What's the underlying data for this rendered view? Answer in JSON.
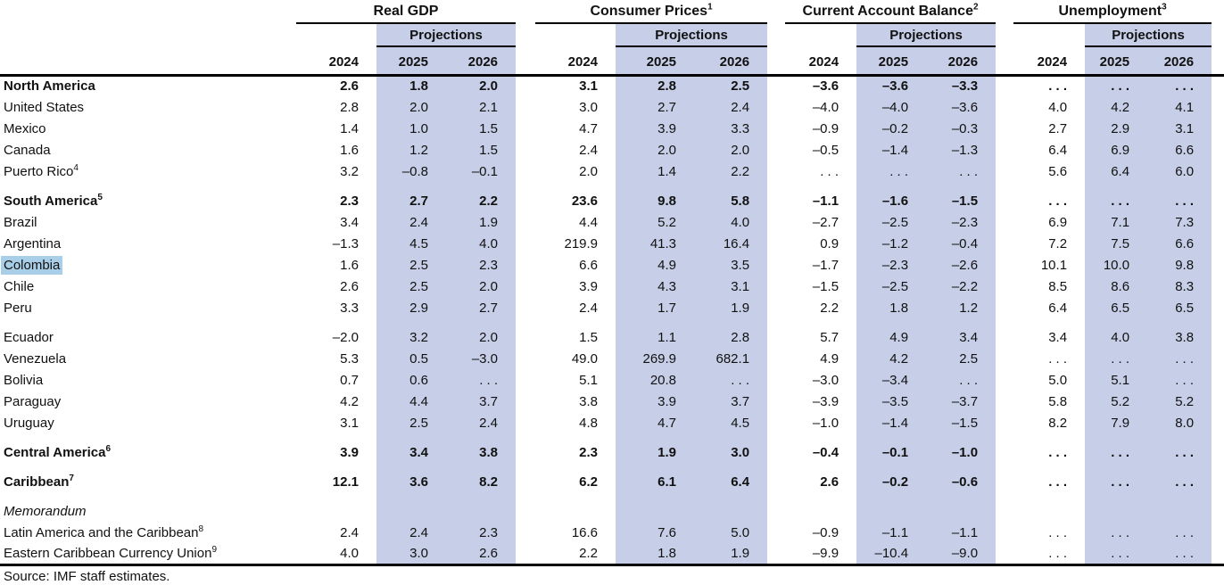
{
  "header": {
    "projections_label": "Projections",
    "years": [
      "2024",
      "2025",
      "2026"
    ],
    "groups": [
      {
        "title": "Real GDP",
        "sup": ""
      },
      {
        "title": "Consumer Prices",
        "sup": "1"
      },
      {
        "title": "Current Account Balance",
        "sup": "2"
      },
      {
        "title": "Unemployment",
        "sup": "3"
      }
    ]
  },
  "table": {
    "rows": [
      {
        "label": "North America",
        "bold": true,
        "values": [
          "2.6",
          "1.8",
          "2.0",
          "3.1",
          "2.8",
          "2.5",
          "–3.6",
          "–3.6",
          "–3.3",
          ". . .",
          ". . .",
          ". . ."
        ]
      },
      {
        "label": "United States",
        "values": [
          "2.8",
          "2.0",
          "2.1",
          "3.0",
          "2.7",
          "2.4",
          "–4.0",
          "–4.0",
          "–3.6",
          "4.0",
          "4.2",
          "4.1"
        ]
      },
      {
        "label": "Mexico",
        "values": [
          "1.4",
          "1.0",
          "1.5",
          "4.7",
          "3.9",
          "3.3",
          "–0.9",
          "–0.2",
          "–0.3",
          "2.7",
          "2.9",
          "3.1"
        ]
      },
      {
        "label": "Canada",
        "values": [
          "1.6",
          "1.2",
          "1.5",
          "2.4",
          "2.0",
          "2.0",
          "–0.5",
          "–1.4",
          "–1.3",
          "6.4",
          "6.9",
          "6.6"
        ]
      },
      {
        "label": "Puerto Rico",
        "sup": "4",
        "values": [
          "3.2",
          "–0.8",
          "–0.1",
          "2.0",
          "1.4",
          "2.2",
          ". . .",
          ". . .",
          ". . .",
          "5.6",
          "6.4",
          "6.0"
        ]
      },
      {
        "label": "South America",
        "sup": "5",
        "bold": true,
        "spacer_before": true,
        "values": [
          "2.3",
          "2.7",
          "2.2",
          "23.6",
          "9.8",
          "5.8",
          "–1.1",
          "–1.6",
          "–1.5",
          ". . .",
          ". . .",
          ". . ."
        ]
      },
      {
        "label": "Brazil",
        "values": [
          "3.4",
          "2.4",
          "1.9",
          "4.4",
          "5.2",
          "4.0",
          "–2.7",
          "–2.5",
          "–2.3",
          "6.9",
          "7.1",
          "7.3"
        ]
      },
      {
        "label": "Argentina",
        "values": [
          "–1.3",
          "4.5",
          "4.0",
          "219.9",
          "41.3",
          "16.4",
          "0.9",
          "–1.2",
          "–0.4",
          "7.2",
          "7.5",
          "6.6"
        ]
      },
      {
        "label": "Colombia",
        "highlight": true,
        "values": [
          "1.6",
          "2.5",
          "2.3",
          "6.6",
          "4.9",
          "3.5",
          "–1.7",
          "–2.3",
          "–2.6",
          "10.1",
          "10.0",
          "9.8"
        ]
      },
      {
        "label": "Chile",
        "values": [
          "2.6",
          "2.5",
          "2.0",
          "3.9",
          "4.3",
          "3.1",
          "–1.5",
          "–2.5",
          "–2.2",
          "8.5",
          "8.6",
          "8.3"
        ]
      },
      {
        "label": "Peru",
        "values": [
          "3.3",
          "2.9",
          "2.7",
          "2.4",
          "1.7",
          "1.9",
          "2.2",
          "1.8",
          "1.2",
          "6.4",
          "6.5",
          "6.5"
        ]
      },
      {
        "label": "Ecuador",
        "spacer_before": true,
        "values": [
          "–2.0",
          "3.2",
          "2.0",
          "1.5",
          "1.1",
          "2.8",
          "5.7",
          "4.9",
          "3.4",
          "3.4",
          "4.0",
          "3.8"
        ]
      },
      {
        "label": "Venezuela",
        "values": [
          "5.3",
          "0.5",
          "–3.0",
          "49.0",
          "269.9",
          "682.1",
          "4.9",
          "4.2",
          "2.5",
          ". . .",
          ". . .",
          ". . ."
        ]
      },
      {
        "label": "Bolivia",
        "values": [
          "0.7",
          "0.6",
          ". . .",
          "5.1",
          "20.8",
          ". . .",
          "–3.0",
          "–3.4",
          ". . .",
          "5.0",
          "5.1",
          ". . ."
        ]
      },
      {
        "label": "Paraguay",
        "values": [
          "4.2",
          "4.4",
          "3.7",
          "3.8",
          "3.9",
          "3.7",
          "–3.9",
          "–3.5",
          "–3.7",
          "5.8",
          "5.2",
          "5.2"
        ]
      },
      {
        "label": "Uruguay",
        "values": [
          "3.1",
          "2.5",
          "2.4",
          "4.8",
          "4.7",
          "4.5",
          "–1.0",
          "–1.4",
          "–1.5",
          "8.2",
          "7.9",
          "8.0"
        ]
      },
      {
        "label": "Central America",
        "sup": "6",
        "bold": true,
        "spacer_before": true,
        "values": [
          "3.9",
          "3.4",
          "3.8",
          "2.3",
          "1.9",
          "3.0",
          "–0.4",
          "–0.1",
          "–1.0",
          ". . .",
          ". . .",
          ". . ."
        ]
      },
      {
        "label": "Caribbean",
        "sup": "7",
        "bold": true,
        "spacer_before": true,
        "values": [
          "12.1",
          "3.6",
          "8.2",
          "6.2",
          "6.1",
          "6.4",
          "2.6",
          "–0.2",
          "–0.6",
          ". . .",
          ". . .",
          ". . ."
        ]
      },
      {
        "label": "Memorandum",
        "italic": true,
        "spacer_before": true,
        "values": []
      },
      {
        "label": "Latin America and the Caribbean",
        "sup": "8",
        "values": [
          "2.4",
          "2.4",
          "2.3",
          "16.6",
          "7.6",
          "5.0",
          "–0.9",
          "–1.1",
          "–1.1",
          ". . .",
          ". . .",
          ". . ."
        ]
      },
      {
        "label": "Eastern Caribbean Currency Union",
        "sup": "9",
        "values": [
          "4.0",
          "3.0",
          "2.6",
          "2.2",
          "1.8",
          "1.9",
          "–9.9",
          "–10.4",
          "–9.0",
          ". . .",
          ". . .",
          ". . ."
        ]
      }
    ]
  },
  "footer": {
    "source_note": "Source: IMF staff estimates."
  },
  "colors": {
    "projection_band": "#c7cfe8",
    "selection_highlight": "#a9cee8"
  }
}
